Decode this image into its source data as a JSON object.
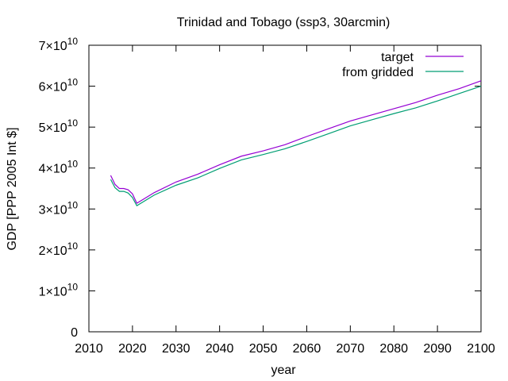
{
  "chart_data": {
    "type": "line",
    "title": "Trinidad and Tobago (ssp3, 30arcmin)",
    "xlabel": "year",
    "ylabel": "GDP [PPP 2005 Int $]",
    "xlim": [
      2010,
      2100
    ],
    "ylim": [
      0,
      70000000000
    ],
    "xticks": [
      "2010",
      "2020",
      "2030",
      "2040",
      "2050",
      "2060",
      "2070",
      "2080",
      "2090",
      "2100"
    ],
    "yticks": [
      {
        "value": 0,
        "mantissa": "0",
        "exp": ""
      },
      {
        "value": 10000000000,
        "mantissa": "1×10",
        "exp": "10"
      },
      {
        "value": 20000000000,
        "mantissa": "2×10",
        "exp": "10"
      },
      {
        "value": 30000000000,
        "mantissa": "3×10",
        "exp": "10"
      },
      {
        "value": 40000000000,
        "mantissa": "4×10",
        "exp": "10"
      },
      {
        "value": 50000000000,
        "mantissa": "5×10",
        "exp": "10"
      },
      {
        "value": 60000000000,
        "mantissa": "6×10",
        "exp": "10"
      },
      {
        "value": 70000000000,
        "mantissa": "7×10",
        "exp": "10"
      }
    ],
    "grid": false,
    "legend_position": "top-right",
    "series": [
      {
        "name": "target",
        "color": "#9400d3",
        "x": [
          2015,
          2016,
          2017,
          2018,
          2019,
          2020,
          2021,
          2025,
          2030,
          2035,
          2040,
          2045,
          2050,
          2055,
          2060,
          2065,
          2070,
          2075,
          2080,
          2085,
          2090,
          2095,
          2100
        ],
        "y": [
          38200000000,
          36000000000,
          35000000000,
          35000000000,
          34700000000,
          33700000000,
          31400000000,
          34000000000,
          36600000000,
          38500000000,
          40800000000,
          42900000000,
          44200000000,
          45700000000,
          47700000000,
          49600000000,
          51500000000,
          53000000000,
          54500000000,
          56000000000,
          57800000000,
          59400000000,
          61300000000
        ]
      },
      {
        "name": "from gridded",
        "color": "#009e73",
        "x": [
          2015,
          2016,
          2017,
          2018,
          2019,
          2020,
          2021,
          2025,
          2030,
          2035,
          2040,
          2045,
          2050,
          2055,
          2060,
          2065,
          2070,
          2075,
          2080,
          2085,
          2090,
          2095,
          2100
        ],
        "y": [
          37200000000,
          35200000000,
          34300000000,
          34300000000,
          33900000000,
          32800000000,
          30800000000,
          33400000000,
          35800000000,
          37600000000,
          39900000000,
          42000000000,
          43300000000,
          44700000000,
          46500000000,
          48400000000,
          50300000000,
          51800000000,
          53300000000,
          54700000000,
          56400000000,
          58200000000,
          60000000000
        ]
      }
    ]
  }
}
